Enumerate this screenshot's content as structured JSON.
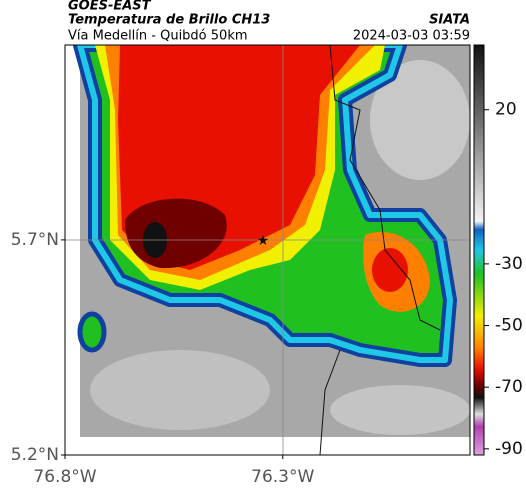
{
  "header": {
    "source": "GOES-EAST",
    "title": "Temperatura de Brillo CH13",
    "credit": "SIATA",
    "subtitle": "Vía Medellín - Quibdó 50km",
    "timestamp": "2024-03-03 03:59"
  },
  "map": {
    "xlim": [
      -76.8,
      -75.87
    ],
    "ylim": [
      5.2,
      6.153
    ],
    "xticks": [
      {
        "value": -76.8,
        "label": "76.8°W"
      },
      {
        "value": -76.3,
        "label": "76.3°W"
      }
    ],
    "yticks": [
      {
        "value": 5.2,
        "label": "5.2°N"
      },
      {
        "value": 5.7,
        "label": "5.7°N"
      }
    ]
  },
  "colorbar": {
    "range": [
      -92,
      41
    ],
    "ticks": [
      20,
      -30,
      -50,
      -70,
      -90
    ]
  }
}
